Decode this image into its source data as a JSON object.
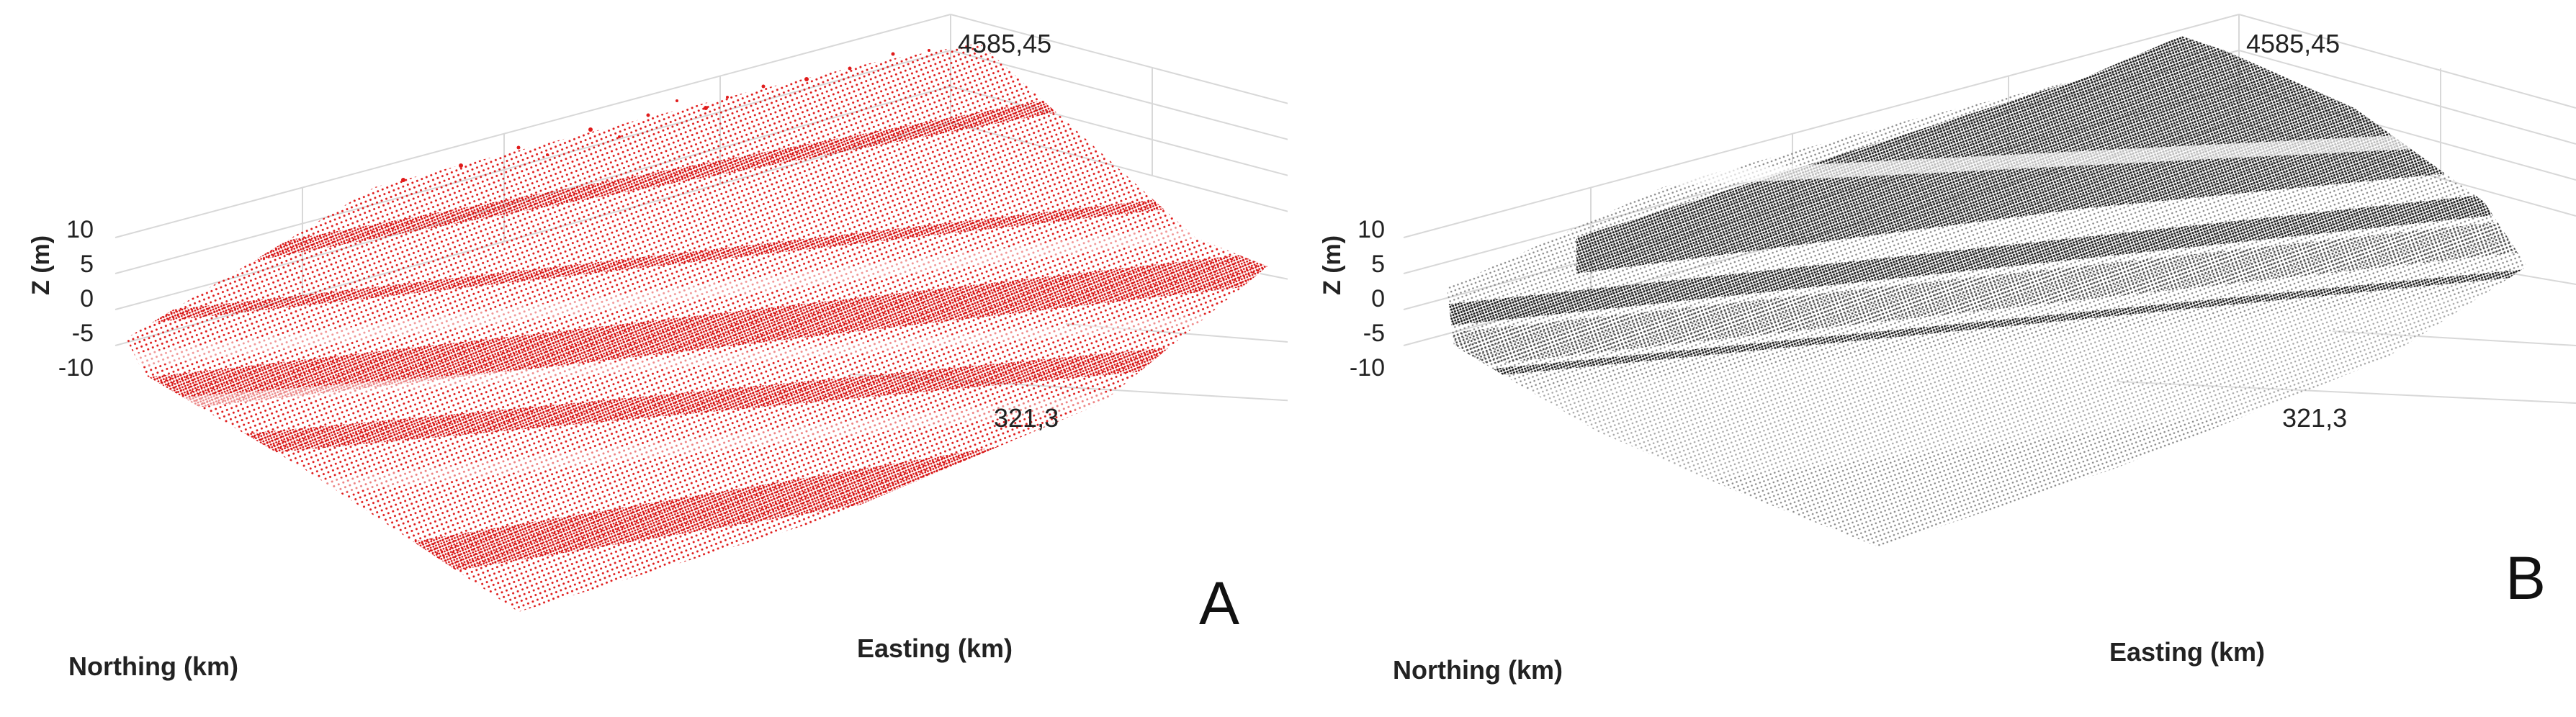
{
  "panels": [
    {
      "letter": "A",
      "color": "#e01b1b",
      "z_label": "Z (m)",
      "z_ticks": [
        "10",
        "5",
        "0",
        "-5",
        "-10"
      ],
      "northing_top": "4585,45",
      "easting_right": "321,3",
      "northing_label": "Northing (km)",
      "easting_label": "Easting  (km)"
    },
    {
      "letter": "B",
      "color": "#2a2a2a",
      "z_label": "Z (m)",
      "z_ticks": [
        "10",
        "5",
        "0",
        "-5",
        "-10"
      ],
      "northing_top": "4585,45",
      "easting_right": "321,3",
      "northing_label": "Northing (km)",
      "easting_label": "Easting  (km)"
    }
  ]
}
